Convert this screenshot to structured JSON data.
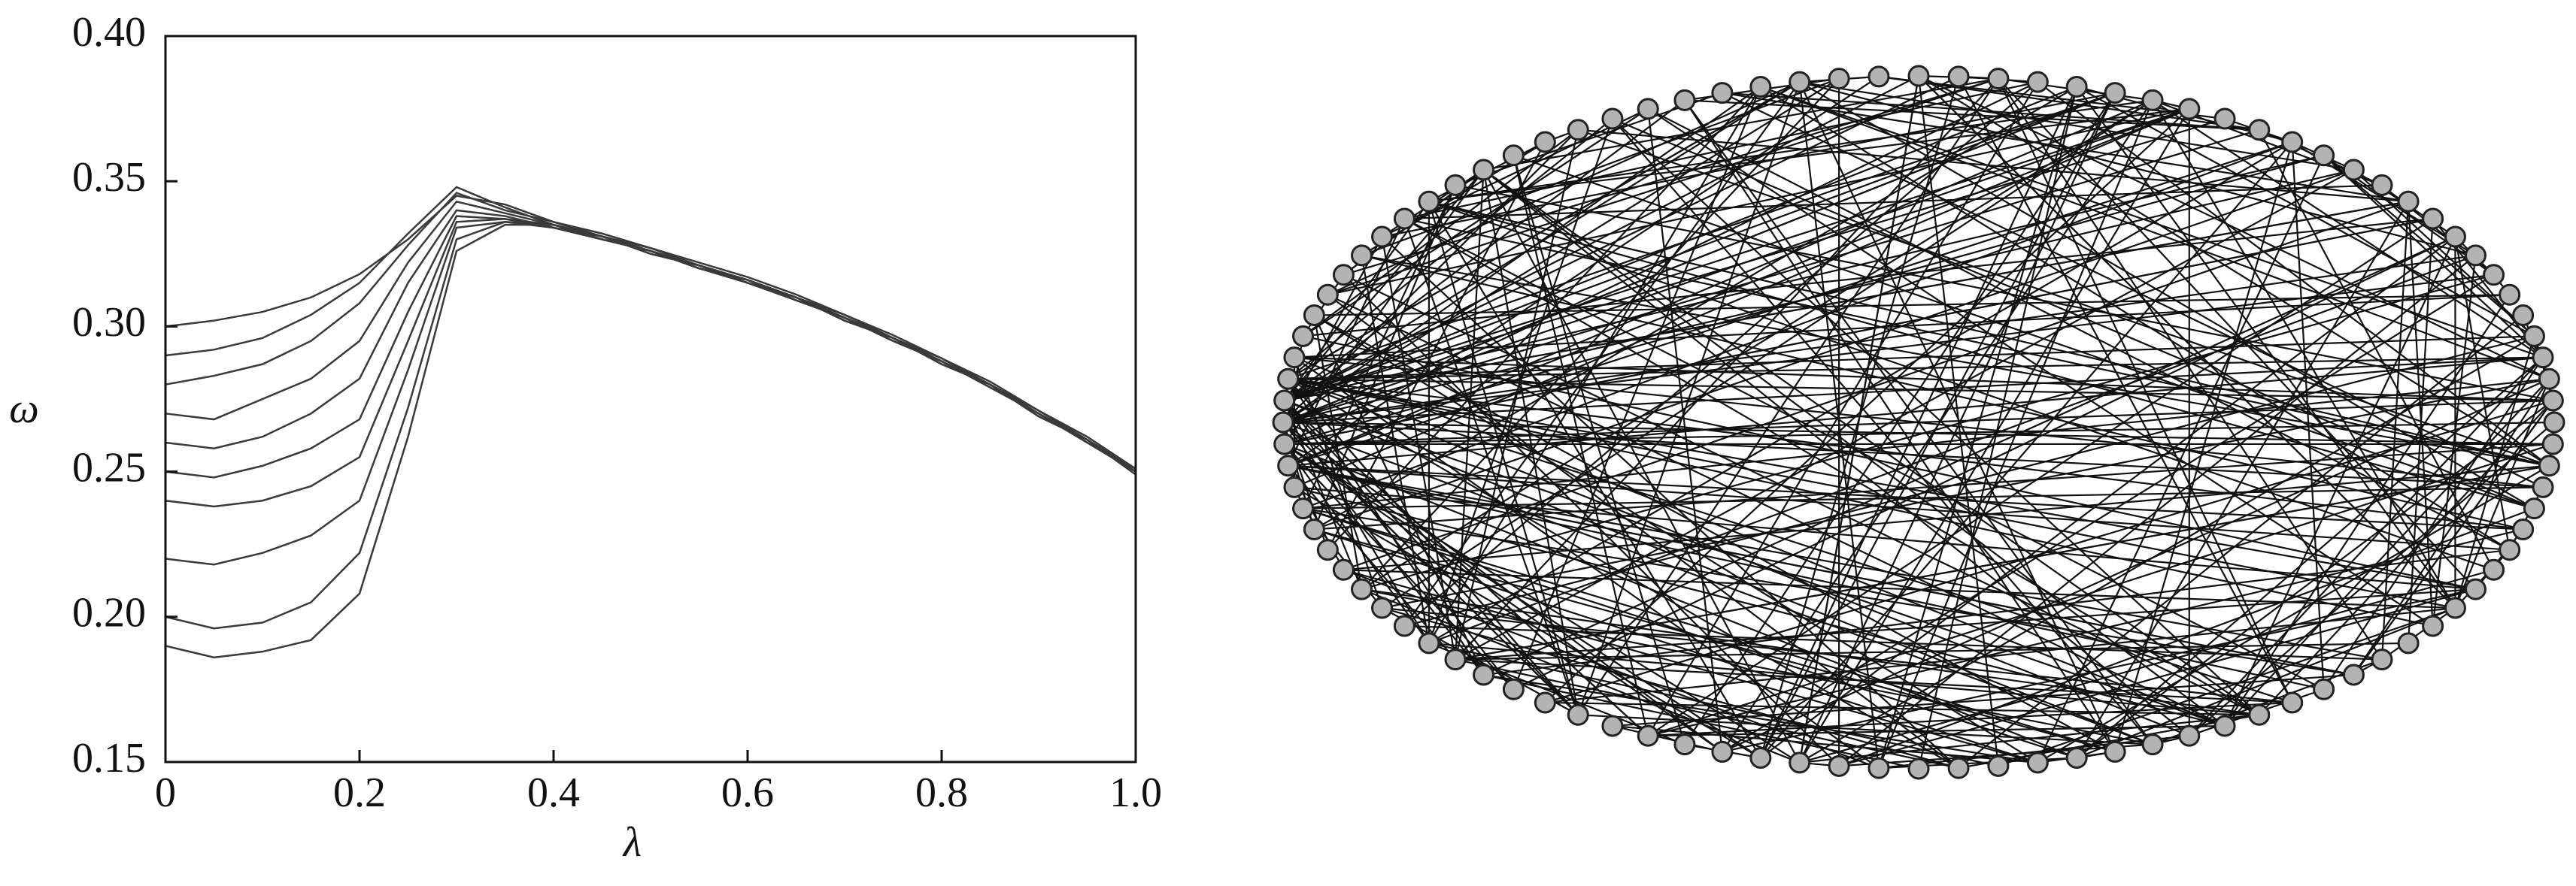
{
  "chart_data": {
    "type": "line",
    "xlabel": "λ",
    "ylabel": "ω",
    "x": [
      0,
      0.05,
      0.1,
      0.15,
      0.2,
      0.25,
      0.3,
      0.35,
      0.4,
      0.45,
      0.5,
      0.55,
      0.6,
      0.65,
      0.7,
      0.75,
      0.8,
      0.85,
      0.9,
      0.95,
      1.0
    ],
    "series": [
      {
        "color": "#3a3a3a",
        "values": [
          0.3,
          0.302,
          0.305,
          0.31,
          0.318,
          0.33,
          0.345,
          0.342,
          0.336,
          0.332,
          0.327,
          0.322,
          0.317,
          0.311,
          0.304,
          0.297,
          0.289,
          0.281,
          0.271,
          0.262,
          0.251
        ]
      },
      {
        "color": "#3a3a3a",
        "values": [
          0.29,
          0.292,
          0.296,
          0.304,
          0.315,
          0.332,
          0.348,
          0.341,
          0.335,
          0.331,
          0.326,
          0.321,
          0.316,
          0.31,
          0.303,
          0.296,
          0.288,
          0.28,
          0.27,
          0.261,
          0.25
        ]
      },
      {
        "color": "#3a3a3a",
        "values": [
          0.28,
          0.283,
          0.287,
          0.295,
          0.308,
          0.328,
          0.346,
          0.34,
          0.336,
          0.331,
          0.327,
          0.321,
          0.316,
          0.31,
          0.304,
          0.296,
          0.289,
          0.28,
          0.271,
          0.261,
          0.251
        ]
      },
      {
        "color": "#3a3a3a",
        "values": [
          0.27,
          0.268,
          0.275,
          0.282,
          0.295,
          0.322,
          0.343,
          0.339,
          0.335,
          0.33,
          0.326,
          0.32,
          0.315,
          0.309,
          0.303,
          0.295,
          0.288,
          0.279,
          0.27,
          0.26,
          0.25
        ]
      },
      {
        "color": "#3a3a3a",
        "values": [
          0.26,
          0.258,
          0.262,
          0.27,
          0.282,
          0.315,
          0.34,
          0.338,
          0.334,
          0.331,
          0.325,
          0.321,
          0.316,
          0.31,
          0.302,
          0.296,
          0.287,
          0.28,
          0.269,
          0.261,
          0.249
        ]
      },
      {
        "color": "#3a3a3a",
        "values": [
          0.25,
          0.248,
          0.252,
          0.258,
          0.268,
          0.305,
          0.338,
          0.337,
          0.335,
          0.331,
          0.326,
          0.321,
          0.315,
          0.31,
          0.303,
          0.296,
          0.288,
          0.28,
          0.27,
          0.261,
          0.25
        ]
      },
      {
        "color": "#3a3a3a",
        "values": [
          0.24,
          0.238,
          0.24,
          0.245,
          0.255,
          0.295,
          0.336,
          0.337,
          0.334,
          0.33,
          0.326,
          0.32,
          0.316,
          0.309,
          0.303,
          0.295,
          0.288,
          0.279,
          0.27,
          0.26,
          0.251
        ]
      },
      {
        "color": "#3a3a3a",
        "values": [
          0.22,
          0.218,
          0.222,
          0.228,
          0.24,
          0.285,
          0.334,
          0.336,
          0.335,
          0.331,
          0.325,
          0.321,
          0.315,
          0.31,
          0.302,
          0.296,
          0.287,
          0.28,
          0.269,
          0.261,
          0.25
        ]
      },
      {
        "color": "#3a3a3a",
        "values": [
          0.2,
          0.196,
          0.198,
          0.205,
          0.222,
          0.272,
          0.33,
          0.336,
          0.334,
          0.33,
          0.326,
          0.32,
          0.316,
          0.309,
          0.303,
          0.295,
          0.288,
          0.279,
          0.27,
          0.26,
          0.25
        ]
      },
      {
        "color": "#3a3a3a",
        "values": [
          0.19,
          0.186,
          0.188,
          0.192,
          0.208,
          0.262,
          0.326,
          0.335,
          0.335,
          0.331,
          0.326,
          0.321,
          0.315,
          0.31,
          0.303,
          0.296,
          0.288,
          0.28,
          0.27,
          0.261,
          0.25
        ]
      }
    ],
    "xlim": [
      0,
      1.0
    ],
    "ylim": [
      0.15,
      0.4
    ],
    "xticks": [
      0,
      0.2,
      0.4,
      0.6,
      0.8,
      {
        "value": 1.0,
        "label": "1.0"
      }
    ],
    "yticks": [
      0.15,
      {
        "value": 0.2,
        "label": "0.20"
      },
      0.25,
      {
        "value": 0.3,
        "label": "0.30"
      },
      0.35,
      {
        "value": 0.4,
        "label": "0.40"
      }
    ]
  }
}
